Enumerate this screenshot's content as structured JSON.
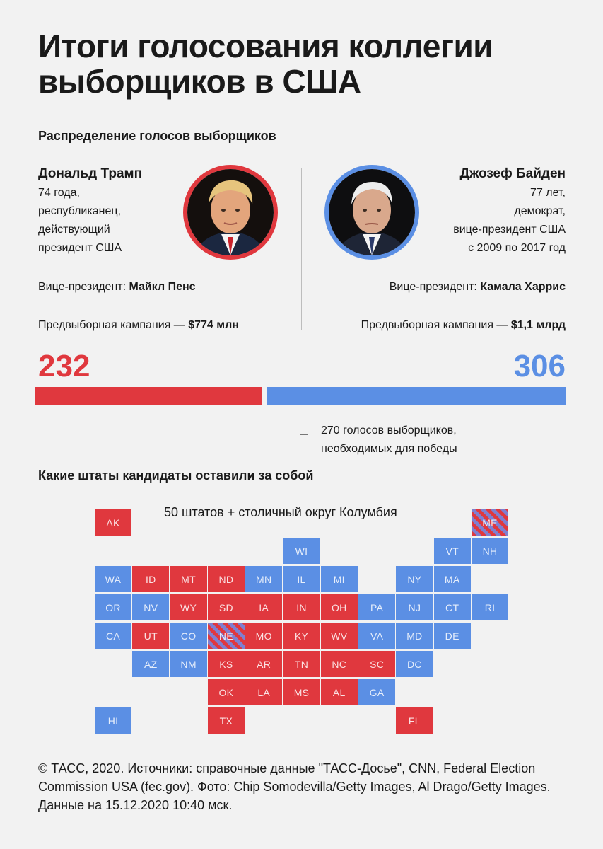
{
  "title": "Итоги голосования коллегии выборщиков в США",
  "section1": "Распределение голосов выборщиков",
  "section2": "Какие штаты кандидаты оставили за собой",
  "trump": {
    "name": "Дональд Трамп",
    "bio": [
      "74 года,",
      "республиканец,",
      "действующий",
      "президент США"
    ],
    "vp_label": "Вице-президент:",
    "vp_name": "Майкл Пенс",
    "campaign_label": "Предвыборная кампания —",
    "campaign_value": "$774 млн",
    "color": "#e0383e"
  },
  "biden": {
    "name": "Джозеф Байден",
    "bio": [
      "77 лет,",
      "демократ,",
      "вице-президент США",
      "с 2009 по 2017 год"
    ],
    "vp_label": "Вице-президент:",
    "vp_name": "Камала Харрис",
    "campaign_label": "Предвыборная кампания —",
    "campaign_value": "$1,1 млрд",
    "color": "#5b8fe4"
  },
  "threshold_text": [
    "270 голосов выборщиков,",
    "необходимых для победы"
  ],
  "map_caption": "50 штатов + столичный округ Колумбия",
  "footer": "© ТАСС, 2020. Источники: справочные данные \"ТАСС-Досье\", CNN, Federal Election Commission USA (fec.gov). Фото: Chip Somodevilla/Getty Images, Al Drago/Getty Images. Данные на 15.12.2020 10:40 мск.",
  "chart_data": [
    {
      "type": "bar",
      "categories": [
        "Дональд Трамп",
        "Джозеф Байден"
      ],
      "values": [
        232,
        306
      ],
      "total": 538,
      "threshold": 270,
      "colors": [
        "#e0383e",
        "#5b8fe4"
      ]
    },
    {
      "type": "heatmap",
      "winner_codes": {
        "R": "Трамп",
        "D": "Байден",
        "S": "split"
      },
      "states": [
        {
          "code": "AK",
          "winner": "R",
          "col": 0,
          "row": 0
        },
        {
          "code": "ME",
          "winner": "S",
          "col": 10,
          "row": 0
        },
        {
          "code": "WI",
          "winner": "D",
          "col": 5,
          "row": 1
        },
        {
          "code": "VT",
          "winner": "D",
          "col": 9,
          "row": 1
        },
        {
          "code": "NH",
          "winner": "D",
          "col": 10,
          "row": 1
        },
        {
          "code": "WA",
          "winner": "D",
          "col": 0,
          "row": 2
        },
        {
          "code": "ID",
          "winner": "R",
          "col": 1,
          "row": 2
        },
        {
          "code": "MT",
          "winner": "R",
          "col": 2,
          "row": 2
        },
        {
          "code": "ND",
          "winner": "R",
          "col": 3,
          "row": 2
        },
        {
          "code": "MN",
          "winner": "D",
          "col": 4,
          "row": 2
        },
        {
          "code": "IL",
          "winner": "D",
          "col": 5,
          "row": 2
        },
        {
          "code": "MI",
          "winner": "D",
          "col": 6,
          "row": 2
        },
        {
          "code": "NY",
          "winner": "D",
          "col": 8,
          "row": 2
        },
        {
          "code": "MA",
          "winner": "D",
          "col": 9,
          "row": 2
        },
        {
          "code": "OR",
          "winner": "D",
          "col": 0,
          "row": 3
        },
        {
          "code": "NV",
          "winner": "D",
          "col": 1,
          "row": 3
        },
        {
          "code": "WY",
          "winner": "R",
          "col": 2,
          "row": 3
        },
        {
          "code": "SD",
          "winner": "R",
          "col": 3,
          "row": 3
        },
        {
          "code": "IA",
          "winner": "R",
          "col": 4,
          "row": 3
        },
        {
          "code": "IN",
          "winner": "R",
          "col": 5,
          "row": 3
        },
        {
          "code": "OH",
          "winner": "R",
          "col": 6,
          "row": 3
        },
        {
          "code": "PA",
          "winner": "D",
          "col": 7,
          "row": 3
        },
        {
          "code": "NJ",
          "winner": "D",
          "col": 8,
          "row": 3
        },
        {
          "code": "CT",
          "winner": "D",
          "col": 9,
          "row": 3
        },
        {
          "code": "RI",
          "winner": "D",
          "col": 10,
          "row": 3
        },
        {
          "code": "CA",
          "winner": "D",
          "col": 0,
          "row": 4
        },
        {
          "code": "UT",
          "winner": "R",
          "col": 1,
          "row": 4
        },
        {
          "code": "CO",
          "winner": "D",
          "col": 2,
          "row": 4
        },
        {
          "code": "NE",
          "winner": "S",
          "col": 3,
          "row": 4
        },
        {
          "code": "MO",
          "winner": "R",
          "col": 4,
          "row": 4
        },
        {
          "code": "KY",
          "winner": "R",
          "col": 5,
          "row": 4
        },
        {
          "code": "WV",
          "winner": "R",
          "col": 6,
          "row": 4
        },
        {
          "code": "VA",
          "winner": "D",
          "col": 7,
          "row": 4
        },
        {
          "code": "MD",
          "winner": "D",
          "col": 8,
          "row": 4
        },
        {
          "code": "DE",
          "winner": "D",
          "col": 9,
          "row": 4
        },
        {
          "code": "AZ",
          "winner": "D",
          "col": 1,
          "row": 5
        },
        {
          "code": "NM",
          "winner": "D",
          "col": 2,
          "row": 5
        },
        {
          "code": "KS",
          "winner": "R",
          "col": 3,
          "row": 5
        },
        {
          "code": "AR",
          "winner": "R",
          "col": 4,
          "row": 5
        },
        {
          "code": "TN",
          "winner": "R",
          "col": 5,
          "row": 5
        },
        {
          "code": "NC",
          "winner": "R",
          "col": 6,
          "row": 5
        },
        {
          "code": "SC",
          "winner": "R",
          "col": 7,
          "row": 5
        },
        {
          "code": "DC",
          "winner": "D",
          "col": 8,
          "row": 5
        },
        {
          "code": "OK",
          "winner": "R",
          "col": 3,
          "row": 6
        },
        {
          "code": "LA",
          "winner": "R",
          "col": 4,
          "row": 6
        },
        {
          "code": "MS",
          "winner": "R",
          "col": 5,
          "row": 6
        },
        {
          "code": "AL",
          "winner": "R",
          "col": 6,
          "row": 6
        },
        {
          "code": "GA",
          "winner": "D",
          "col": 7,
          "row": 6
        },
        {
          "code": "HI",
          "winner": "D",
          "col": 0,
          "row": 7
        },
        {
          "code": "TX",
          "winner": "R",
          "col": 3,
          "row": 7
        },
        {
          "code": "FL",
          "winner": "R",
          "col": 8,
          "row": 7
        }
      ]
    }
  ]
}
